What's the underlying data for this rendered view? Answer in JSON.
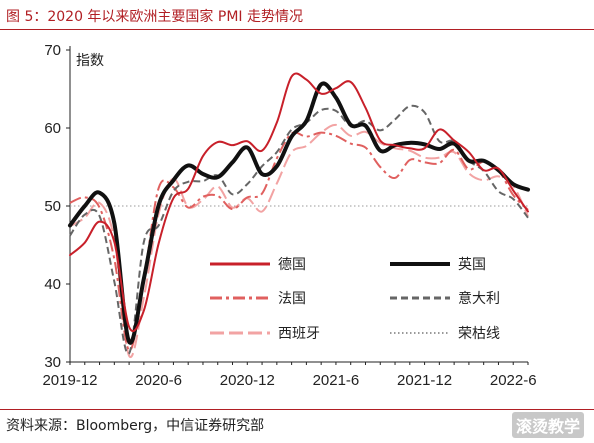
{
  "figure": {
    "title": "图 5：2020 年以来欧洲主要国家 PMI 走势情况",
    "source": "资料来源：Bloomberg，中信证券研究部",
    "watermark": "滚烫教学"
  },
  "chart_data": {
    "type": "line",
    "title": "",
    "xlabel": "",
    "ylabel": "指数",
    "x_tick_labels": [
      "2019-12",
      "2020-6",
      "2020-12",
      "2021-6",
      "2021-12",
      "2022-6"
    ],
    "x_ticks_index": [
      0,
      6,
      12,
      18,
      24,
      30
    ],
    "ylim": [
      30,
      70
    ],
    "yticks": [
      30,
      40,
      50,
      60,
      70
    ],
    "grid": false,
    "legend_position": "bottom-right inside plot",
    "x": [
      "2019-12",
      "2020-01",
      "2020-02",
      "2020-03",
      "2020-04",
      "2020-05",
      "2020-06",
      "2020-07",
      "2020-08",
      "2020-09",
      "2020-10",
      "2020-11",
      "2020-12",
      "2021-01",
      "2021-02",
      "2021-03",
      "2021-04",
      "2021-05",
      "2021-06",
      "2021-07",
      "2021-08",
      "2021-09",
      "2021-10",
      "2021-11",
      "2021-12",
      "2022-01",
      "2022-02",
      "2022-03",
      "2022-04",
      "2022-05",
      "2022-06",
      "2022-07"
    ],
    "series": [
      {
        "name": "德国",
        "color": "#c8202a",
        "dash": "solid",
        "width": 2,
        "values": [
          43.7,
          45.3,
          48.0,
          45.4,
          34.5,
          36.6,
          45.2,
          51.0,
          52.2,
          56.4,
          58.2,
          57.8,
          58.3,
          57.1,
          60.7,
          66.6,
          66.2,
          64.4,
          65.1,
          65.9,
          62.6,
          58.4,
          57.8,
          57.4,
          57.4,
          59.8,
          58.4,
          56.9,
          54.6,
          54.8,
          52.0,
          49.3
        ]
      },
      {
        "name": "英国",
        "color": "#111111",
        "dash": "solid",
        "width": 4,
        "values": [
          47.5,
          50.0,
          51.7,
          47.8,
          32.6,
          40.7,
          50.1,
          53.3,
          55.2,
          54.1,
          53.7,
          55.6,
          57.5,
          54.1,
          55.1,
          58.9,
          60.9,
          65.6,
          63.9,
          60.4,
          60.3,
          57.1,
          57.8,
          58.1,
          57.9,
          57.3,
          58.0,
          55.8,
          55.8,
          54.6,
          52.8,
          52.1
        ]
      },
      {
        "name": "法国",
        "color": "#e0605f",
        "dash": "dashdot",
        "width": 2,
        "values": [
          50.4,
          51.1,
          49.8,
          43.2,
          31.5,
          40.6,
          52.3,
          52.4,
          49.8,
          51.2,
          51.3,
          49.6,
          51.1,
          51.6,
          56.1,
          59.3,
          58.9,
          59.4,
          59.0,
          58.0,
          57.5,
          55.0,
          53.6,
          55.9,
          55.6,
          55.5,
          57.2,
          54.7,
          55.7,
          54.6,
          51.4,
          49.5
        ]
      },
      {
        "name": "意大利",
        "color": "#666666",
        "dash": "dashed",
        "width": 2,
        "values": [
          46.2,
          48.9,
          48.7,
          40.3,
          31.1,
          45.4,
          47.5,
          51.9,
          53.1,
          53.2,
          53.9,
          51.5,
          52.8,
          55.1,
          56.9,
          59.8,
          60.7,
          62.3,
          62.2,
          60.3,
          60.9,
          59.7,
          61.1,
          62.8,
          62.0,
          58.3,
          58.3,
          55.8,
          54.5,
          51.9,
          50.9,
          48.5
        ]
      },
      {
        "name": "西班牙",
        "color": "#f2a3a3",
        "dash": "longdash",
        "width": 2,
        "values": [
          47.4,
          48.5,
          50.4,
          45.7,
          30.8,
          38.3,
          49.0,
          53.5,
          49.9,
          50.8,
          52.5,
          49.8,
          51.0,
          49.3,
          52.9,
          56.9,
          57.7,
          59.4,
          60.4,
          59.0,
          59.5,
          58.1,
          57.4,
          57.1,
          56.2,
          56.2,
          56.9,
          54.2,
          53.3,
          53.8,
          52.6,
          48.7
        ]
      },
      {
        "name": "荣枯线",
        "color": "#999999",
        "dash": "dotted",
        "width": 1,
        "values": [
          50,
          50,
          50,
          50,
          50,
          50,
          50,
          50,
          50,
          50,
          50,
          50,
          50,
          50,
          50,
          50,
          50,
          50,
          50,
          50,
          50,
          50,
          50,
          50,
          50,
          50,
          50,
          50,
          50,
          50,
          50,
          50
        ]
      }
    ]
  }
}
